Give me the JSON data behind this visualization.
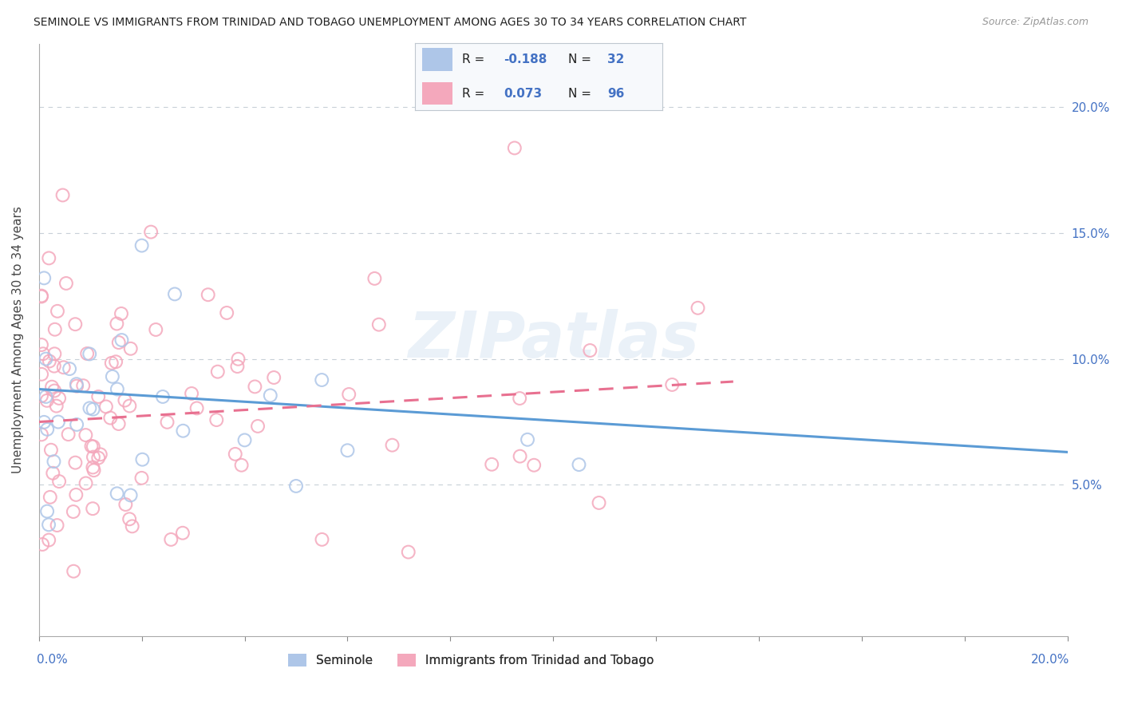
{
  "title": "SEMINOLE VS IMMIGRANTS FROM TRINIDAD AND TOBAGO UNEMPLOYMENT AMONG AGES 30 TO 34 YEARS CORRELATION CHART",
  "source": "Source: ZipAtlas.com",
  "ylabel": "Unemployment Among Ages 30 to 34 years",
  "legend_seminole": "Seminole",
  "legend_immigrants": "Immigrants from Trinidad and Tobago",
  "R_seminole": -0.188,
  "N_seminole": 32,
  "R_immigrants": 0.073,
  "N_immigrants": 96,
  "color_seminole": "#aec6e8",
  "color_immigrants": "#f4a8bc",
  "color_seminole_line": "#5b9bd5",
  "color_immigrants_line": "#e87090",
  "xlim": [
    0.0,
    0.2
  ],
  "ylim": [
    -0.01,
    0.225
  ],
  "watermark": "ZIPatlas",
  "background_color": "#ffffff",
  "sem_line_start_y": 0.088,
  "sem_line_end_y": 0.063,
  "imm_line_start_y": 0.075,
  "imm_line_end_y": 0.091
}
